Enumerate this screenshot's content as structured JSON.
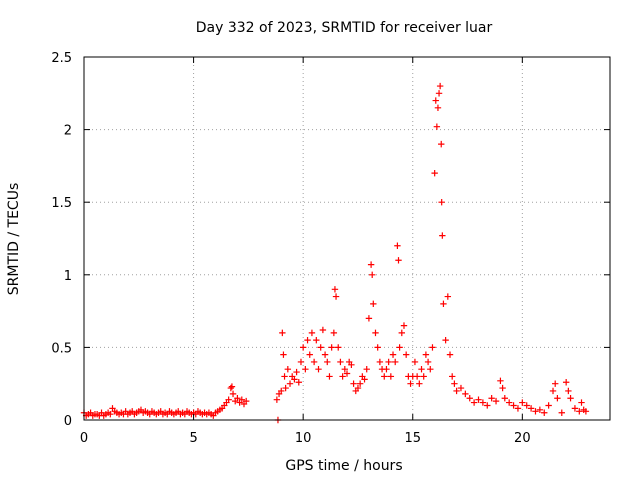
{
  "chart_data": {
    "type": "scatter",
    "title": "Day 332 of 2023, SRMTID for receiver luar",
    "xlabel": "GPS time / hours",
    "ylabel": "SRMTID / TECUs",
    "xlim": [
      0,
      24
    ],
    "ylim": [
      0,
      2.5
    ],
    "xticks": [
      0,
      5,
      10,
      15,
      20
    ],
    "xtick_labels": [
      "0",
      "5",
      "10",
      "15",
      "20"
    ],
    "yticks": [
      0,
      0.5,
      1,
      1.5,
      2,
      2.5
    ],
    "ytick_labels": [
      "0",
      "0.5",
      "1",
      "1.5",
      "2",
      "2.5"
    ],
    "grid": true,
    "marker": "+",
    "color": "#ff0000",
    "series": [
      {
        "name": "SRMTID",
        "points": [
          [
            0.0,
            0.05
          ],
          [
            0.1,
            0.03
          ],
          [
            0.2,
            0.04
          ],
          [
            0.3,
            0.05
          ],
          [
            0.4,
            0.03
          ],
          [
            0.5,
            0.04
          ],
          [
            0.6,
            0.04
          ],
          [
            0.7,
            0.03
          ],
          [
            0.8,
            0.05
          ],
          [
            0.9,
            0.03
          ],
          [
            1.0,
            0.04
          ],
          [
            1.1,
            0.05
          ],
          [
            1.2,
            0.04
          ],
          [
            1.3,
            0.08
          ],
          [
            1.4,
            0.06
          ],
          [
            1.5,
            0.05
          ],
          [
            1.6,
            0.04
          ],
          [
            1.7,
            0.05
          ],
          [
            1.8,
            0.04
          ],
          [
            1.9,
            0.06
          ],
          [
            2.0,
            0.04
          ],
          [
            2.1,
            0.05
          ],
          [
            2.2,
            0.06
          ],
          [
            2.3,
            0.04
          ],
          [
            2.4,
            0.05
          ],
          [
            2.5,
            0.06
          ],
          [
            2.6,
            0.07
          ],
          [
            2.7,
            0.05
          ],
          [
            2.8,
            0.06
          ],
          [
            2.9,
            0.05
          ],
          [
            3.0,
            0.04
          ],
          [
            3.1,
            0.06
          ],
          [
            3.2,
            0.05
          ],
          [
            3.3,
            0.04
          ],
          [
            3.4,
            0.05
          ],
          [
            3.5,
            0.06
          ],
          [
            3.6,
            0.04
          ],
          [
            3.7,
            0.05
          ],
          [
            3.8,
            0.04
          ],
          [
            3.9,
            0.06
          ],
          [
            4.0,
            0.05
          ],
          [
            4.1,
            0.04
          ],
          [
            4.2,
            0.05
          ],
          [
            4.3,
            0.06
          ],
          [
            4.4,
            0.04
          ],
          [
            4.5,
            0.05
          ],
          [
            4.6,
            0.04
          ],
          [
            4.7,
            0.06
          ],
          [
            4.8,
            0.05
          ],
          [
            4.9,
            0.04
          ],
          [
            5.0,
            0.05
          ],
          [
            5.1,
            0.04
          ],
          [
            5.2,
            0.06
          ],
          [
            5.3,
            0.05
          ],
          [
            5.4,
            0.04
          ],
          [
            5.5,
            0.05
          ],
          [
            5.6,
            0.04
          ],
          [
            5.7,
            0.05
          ],
          [
            5.8,
            0.04
          ],
          [
            5.9,
            0.03
          ],
          [
            6.0,
            0.05
          ],
          [
            6.1,
            0.06
          ],
          [
            6.2,
            0.07
          ],
          [
            6.3,
            0.08
          ],
          [
            6.4,
            0.1
          ],
          [
            6.5,
            0.12
          ],
          [
            6.6,
            0.14
          ],
          [
            6.7,
            0.22
          ],
          [
            6.75,
            0.23
          ],
          [
            6.8,
            0.18
          ],
          [
            6.9,
            0.13
          ],
          [
            7.0,
            0.15
          ],
          [
            7.1,
            0.12
          ],
          [
            7.2,
            0.14
          ],
          [
            7.3,
            0.11
          ],
          [
            7.4,
            0.13
          ],
          [
            8.8,
            0.14
          ],
          [
            8.85,
            0.0
          ],
          [
            8.9,
            0.18
          ],
          [
            9.0,
            0.2
          ],
          [
            9.05,
            0.6
          ],
          [
            9.1,
            0.45
          ],
          [
            9.15,
            0.3
          ],
          [
            9.2,
            0.22
          ],
          [
            9.3,
            0.35
          ],
          [
            9.4,
            0.25
          ],
          [
            9.5,
            0.3
          ],
          [
            9.6,
            0.28
          ],
          [
            9.7,
            0.33
          ],
          [
            9.8,
            0.26
          ],
          [
            9.9,
            0.4
          ],
          [
            10.0,
            0.5
          ],
          [
            10.1,
            0.35
          ],
          [
            10.2,
            0.55
          ],
          [
            10.3,
            0.45
          ],
          [
            10.4,
            0.6
          ],
          [
            10.5,
            0.4
          ],
          [
            10.6,
            0.55
          ],
          [
            10.7,
            0.35
          ],
          [
            10.8,
            0.5
          ],
          [
            10.9,
            0.62
          ],
          [
            11.0,
            0.45
          ],
          [
            11.1,
            0.4
          ],
          [
            11.2,
            0.3
          ],
          [
            11.3,
            0.5
          ],
          [
            11.4,
            0.6
          ],
          [
            11.45,
            0.9
          ],
          [
            11.5,
            0.85
          ],
          [
            11.6,
            0.5
          ],
          [
            11.7,
            0.4
          ],
          [
            11.8,
            0.3
          ],
          [
            11.9,
            0.35
          ],
          [
            12.0,
            0.32
          ],
          [
            12.1,
            0.4
          ],
          [
            12.2,
            0.38
          ],
          [
            12.3,
            0.25
          ],
          [
            12.4,
            0.2
          ],
          [
            12.5,
            0.22
          ],
          [
            12.6,
            0.25
          ],
          [
            12.7,
            0.3
          ],
          [
            12.8,
            0.28
          ],
          [
            12.9,
            0.35
          ],
          [
            13.0,
            0.7
          ],
          [
            13.1,
            1.07
          ],
          [
            13.15,
            1.0
          ],
          [
            13.2,
            0.8
          ],
          [
            13.3,
            0.6
          ],
          [
            13.4,
            0.5
          ],
          [
            13.5,
            0.4
          ],
          [
            13.6,
            0.35
          ],
          [
            13.7,
            0.3
          ],
          [
            13.8,
            0.35
          ],
          [
            13.9,
            0.4
          ],
          [
            14.0,
            0.3
          ],
          [
            14.1,
            0.45
          ],
          [
            14.2,
            0.4
          ],
          [
            14.3,
            1.2
          ],
          [
            14.35,
            1.1
          ],
          [
            14.4,
            0.5
          ],
          [
            14.5,
            0.6
          ],
          [
            14.6,
            0.65
          ],
          [
            14.7,
            0.45
          ],
          [
            14.8,
            0.3
          ],
          [
            14.9,
            0.25
          ],
          [
            15.0,
            0.3
          ],
          [
            15.1,
            0.4
          ],
          [
            15.2,
            0.3
          ],
          [
            15.3,
            0.25
          ],
          [
            15.4,
            0.35
          ],
          [
            15.5,
            0.3
          ],
          [
            15.6,
            0.45
          ],
          [
            15.7,
            0.4
          ],
          [
            15.8,
            0.35
          ],
          [
            15.9,
            0.5
          ],
          [
            16.0,
            1.7
          ],
          [
            16.05,
            2.2
          ],
          [
            16.1,
            2.02
          ],
          [
            16.15,
            2.15
          ],
          [
            16.2,
            2.25
          ],
          [
            16.25,
            2.3
          ],
          [
            16.3,
            1.9
          ],
          [
            16.32,
            1.5
          ],
          [
            16.35,
            1.27
          ],
          [
            16.4,
            0.8
          ],
          [
            16.5,
            0.55
          ],
          [
            16.6,
            0.85
          ],
          [
            16.7,
            0.45
          ],
          [
            16.8,
            0.3
          ],
          [
            16.9,
            0.25
          ],
          [
            17.0,
            0.2
          ],
          [
            17.2,
            0.22
          ],
          [
            17.4,
            0.18
          ],
          [
            17.6,
            0.15
          ],
          [
            17.8,
            0.12
          ],
          [
            18.0,
            0.14
          ],
          [
            18.2,
            0.12
          ],
          [
            18.4,
            0.1
          ],
          [
            18.6,
            0.15
          ],
          [
            18.8,
            0.13
          ],
          [
            19.0,
            0.27
          ],
          [
            19.1,
            0.22
          ],
          [
            19.2,
            0.15
          ],
          [
            19.4,
            0.12
          ],
          [
            19.6,
            0.1
          ],
          [
            19.8,
            0.08
          ],
          [
            20.0,
            0.12
          ],
          [
            20.2,
            0.1
          ],
          [
            20.4,
            0.08
          ],
          [
            20.6,
            0.06
          ],
          [
            20.8,
            0.07
          ],
          [
            21.0,
            0.05
          ],
          [
            21.2,
            0.1
          ],
          [
            21.4,
            0.2
          ],
          [
            21.5,
            0.25
          ],
          [
            21.6,
            0.15
          ],
          [
            21.8,
            0.05
          ],
          [
            22.0,
            0.26
          ],
          [
            22.1,
            0.2
          ],
          [
            22.2,
            0.15
          ],
          [
            22.4,
            0.08
          ],
          [
            22.6,
            0.06
          ],
          [
            22.7,
            0.12
          ],
          [
            22.8,
            0.07
          ],
          [
            22.9,
            0.06
          ]
        ]
      }
    ]
  }
}
